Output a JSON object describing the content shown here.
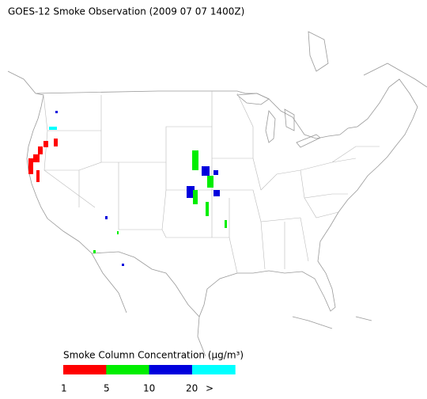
{
  "title": "GOES-12 Smoke Observation (2009 07 07  1400Z)",
  "legend": {
    "title": "Smoke Column Concentration (μg/m³)",
    "colors": [
      "#ff0000",
      "#00ee00",
      "#0000dd",
      "#00ffff"
    ],
    "labels": [
      "1",
      "5",
      "10",
      "20",
      ">"
    ]
  }
}
